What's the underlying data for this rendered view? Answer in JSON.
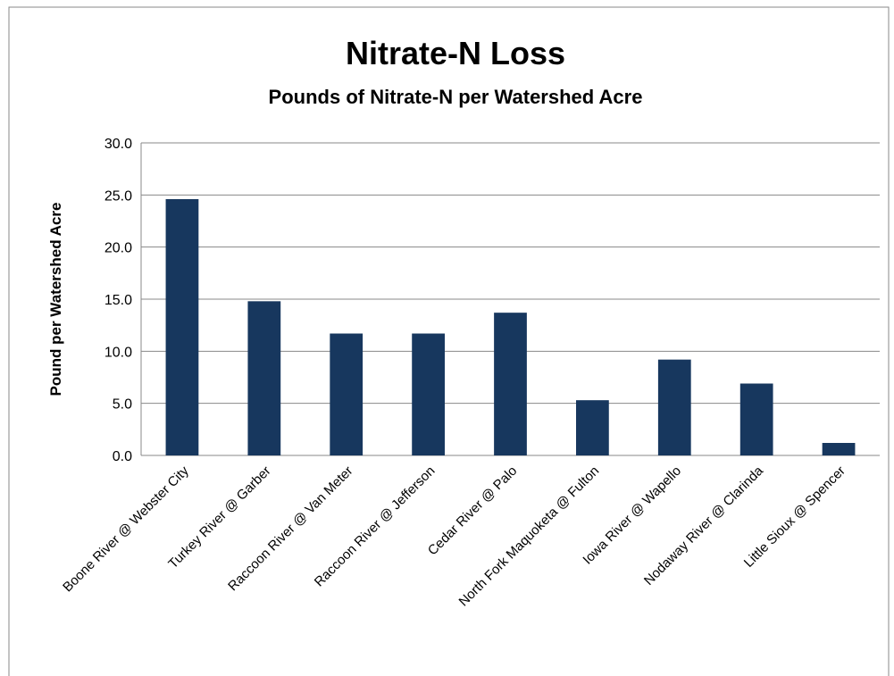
{
  "chart_data": {
    "type": "bar",
    "title": "Nitrate-N Loss",
    "subtitle": "Pounds of Nitrate-N per Watershed Acre",
    "y_label": "Pound per Watershed Acre",
    "categories": [
      "Boone River @ Webster City",
      "Turkey River @ Garber",
      "Raccoon River @ Van Meter",
      "Raccoon River @ Jefferson",
      "Cedar River @ Palo",
      "North Fork Maquoketa @ Fulton",
      "Iowa River @ Wapello",
      "Nodaway River @ Clarinda",
      "Little Sioux @ Spencer"
    ],
    "values": [
      24.6,
      14.8,
      11.7,
      11.7,
      13.7,
      5.3,
      9.2,
      6.9,
      1.2
    ],
    "color": "#17375e",
    "ylim": [
      0,
      30
    ],
    "yticks": [
      {
        "value": 0,
        "label": "0.0"
      },
      {
        "value": 5,
        "label": "5.0"
      },
      {
        "value": 10,
        "label": "10.0"
      },
      {
        "value": 15,
        "label": "15.0"
      },
      {
        "value": 20,
        "label": "20.0"
      },
      {
        "value": 25,
        "label": "25.0"
      },
      {
        "value": 30,
        "label": "30.0"
      }
    ],
    "grid": true
  }
}
